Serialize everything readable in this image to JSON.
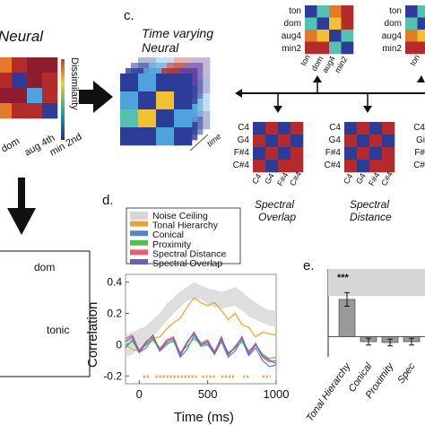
{
  "panels": {
    "c": "c.",
    "d": "d.",
    "e": "e."
  },
  "neural": {
    "title": "Neural",
    "dissimilarity_label": "Dissimilarity",
    "x_ticks": [
      "dom",
      "aug 4th",
      "min 2nd"
    ]
  },
  "time_varying": {
    "title_line1": "Time varying",
    "title_line2": "Neural",
    "time_label": "time"
  },
  "top_matrices": {
    "row_labels": [
      "ton",
      "dom",
      "aug4",
      "min2"
    ],
    "col_labels": [
      "ton",
      "dom",
      "aug4",
      "min2"
    ],
    "right_row_labels": [
      "ton",
      "dom",
      "aug4",
      "min2"
    ],
    "right_col_labels": [
      "ton"
    ]
  },
  "spectral_overlap": {
    "row_labels": [
      "C4",
      "G4",
      "F#4",
      "C#4"
    ],
    "col_labels": [
      "C4",
      "G4",
      "F#4",
      "C#4"
    ],
    "title_line1": "Spectral",
    "title_line2": "Overlap"
  },
  "spectral_distance": {
    "title_line1": "Spectral",
    "title_line2": "Distance",
    "right_row_labels": [
      "C4",
      "Gi",
      "F#",
      "C#"
    ]
  },
  "mds": {
    "labels": [
      "dom",
      "tonic"
    ]
  },
  "colors": {
    "noise_ceiling": "#d6d6d6",
    "tonal_hierarchy": "#e8a534",
    "conical": "#4f86c6",
    "proximity": "#4cc34a",
    "spectral_distance": "#ee5a6e",
    "spectral_overlap": "#6a5fc0",
    "bar_fill": "#999999"
  },
  "chart_data": [
    {
      "type": "line",
      "title": "",
      "xlabel": "Time (ms)",
      "ylabel": "Correlation",
      "xlim": [
        -100,
        1000
      ],
      "ylim": [
        -0.25,
        0.45
      ],
      "x_ticks": [
        "0",
        "500",
        "1000"
      ],
      "y_ticks": [
        "-0.2",
        "0",
        "0.2",
        "0.4"
      ],
      "legend": [
        "Noise Ceiling",
        "Tonal Hierarchy",
        "Conical",
        "Proximity",
        "Spectral Distance",
        "Spectral Overlap"
      ],
      "legend_position": "top",
      "x": [
        -100,
        -50,
        0,
        50,
        100,
        150,
        200,
        250,
        300,
        350,
        400,
        450,
        500,
        550,
        600,
        650,
        700,
        750,
        800,
        850,
        900,
        950,
        1000
      ],
      "noise_ceiling": {
        "lower": [
          -0.08,
          -0.06,
          -0.02,
          0.0,
          0.05,
          0.1,
          0.15,
          0.2,
          0.24,
          0.28,
          0.3,
          0.29,
          0.26,
          0.24,
          0.23,
          0.24,
          0.25,
          0.22,
          0.18,
          0.16,
          0.14,
          0.12,
          0.12
        ],
        "upper": [
          0.06,
          0.08,
          0.1,
          0.12,
          0.16,
          0.2,
          0.26,
          0.3,
          0.34,
          0.37,
          0.4,
          0.38,
          0.36,
          0.35,
          0.34,
          0.35,
          0.37,
          0.34,
          0.3,
          0.27,
          0.24,
          0.22,
          0.22
        ]
      },
      "series": [
        {
          "name": "Tonal Hierarchy",
          "values": [
            0.0,
            -0.03,
            -0.04,
            0.0,
            0.04,
            0.05,
            0.1,
            0.14,
            0.17,
            0.24,
            0.3,
            0.27,
            0.25,
            0.27,
            0.22,
            0.16,
            0.2,
            0.13,
            0.11,
            0.05,
            0.08,
            0.07,
            0.06
          ]
        },
        {
          "name": "Conical",
          "values": [
            -0.02,
            0.03,
            -0.05,
            -0.02,
            0.04,
            -0.04,
            0.0,
            0.03,
            -0.08,
            -0.03,
            0.06,
            -0.01,
            0.0,
            -0.06,
            0.02,
            -0.08,
            -0.04,
            0.03,
            -0.07,
            -0.02,
            -0.1,
            -0.14,
            -0.13
          ]
        },
        {
          "name": "Proximity",
          "values": [
            0.0,
            0.02,
            -0.03,
            0.0,
            0.03,
            -0.02,
            0.01,
            0.02,
            -0.05,
            -0.01,
            0.04,
            0.0,
            0.01,
            -0.04,
            0.03,
            -0.05,
            -0.02,
            0.02,
            -0.04,
            0.0,
            -0.06,
            -0.09,
            -0.08
          ]
        },
        {
          "name": "Spectral Distance",
          "values": [
            0.04,
            0.06,
            -0.04,
            0.02,
            0.05,
            -0.03,
            0.03,
            0.05,
            -0.06,
            0.02,
            0.07,
            0.01,
            0.03,
            -0.05,
            0.05,
            -0.07,
            -0.01,
            0.04,
            -0.05,
            0.01,
            -0.08,
            -0.11,
            -0.1
          ]
        },
        {
          "name": "Spectral Overlap",
          "values": [
            0.02,
            0.05,
            -0.05,
            0.01,
            0.06,
            -0.04,
            0.02,
            0.04,
            -0.07,
            0.01,
            0.08,
            0.0,
            0.02,
            -0.06,
            0.04,
            -0.06,
            -0.02,
            0.05,
            -0.06,
            0.0,
            -0.07,
            -0.1,
            -0.12
          ]
        }
      ],
      "significance_segments": [
        [
          30,
          80
        ],
        [
          120,
          420
        ],
        [
          460,
          560
        ],
        [
          600,
          700
        ],
        [
          760,
          800
        ],
        [
          900,
          960
        ]
      ]
    },
    {
      "type": "bar",
      "title": "",
      "categories": [
        "Tonal Hierarchy",
        "Conical",
        "Proximity",
        "Spec"
      ],
      "values": [
        0.22,
        -0.03,
        -0.035,
        -0.03
      ],
      "errors": [
        0.04,
        0.02,
        0.02,
        0.02
      ],
      "noise_ceiling": [
        0.24,
        0.4
      ],
      "annotation": "***",
      "ylim": [
        -0.12,
        0.4
      ]
    }
  ]
}
